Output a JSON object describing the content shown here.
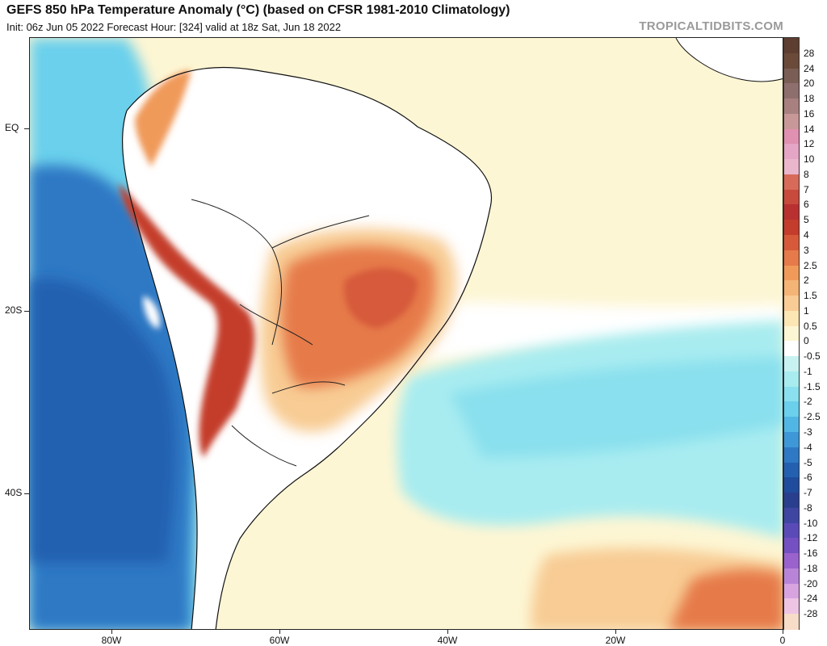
{
  "header": {
    "title": "GEFS 850 hPa Temperature Anomaly (°C) (based on CFSR 1981-2010 Climatology)",
    "subtitle": "Init: 06z Jun 05 2022   Forecast Hour: [324]   valid at 18z Sat, Jun 18 2022",
    "brand": "TROPICALTIDBITS.COM"
  },
  "axes": {
    "lat_labels": [
      "EQ",
      "20S",
      "40S"
    ],
    "lon_labels": [
      "80W",
      "60W",
      "40W",
      "20W",
      "0"
    ]
  },
  "legend": {
    "labels": [
      "28",
      "24",
      "20",
      "18",
      "16",
      "14",
      "12",
      "10",
      "8",
      "7",
      "6",
      "5",
      "4",
      "3",
      "2.5",
      "2",
      "1.5",
      "1",
      "0.5",
      "0",
      "-0.5",
      "-1",
      "-1.5",
      "-2",
      "-2.5",
      "-3",
      "-4",
      "-5",
      "-6",
      "-7",
      "-8",
      "-10",
      "-12",
      "-16",
      "-18",
      "-20",
      "-24",
      "-28"
    ],
    "colors": [
      "#6b4a3a",
      "#7a5e55",
      "#8f6e6e",
      "#a88080",
      "#c89898",
      "#e090b0",
      "#e4a6c4",
      "#eab6cc",
      "#d86a5a",
      "#c74a3c",
      "#b83030",
      "#c43c2c",
      "#d65a3a",
      "#e67a4a",
      "#f09a5a",
      "#f4b476",
      "#f8cc94",
      "#fbe6b4",
      "#fdf6d4",
      "#ffffff",
      "#c8f2f2",
      "#a8ecf0",
      "#8ae0ee",
      "#6ad0ec",
      "#52b6e4",
      "#3e98d8",
      "#2e78c4",
      "#2360b0",
      "#1f4c9c",
      "#2a3e8e",
      "#3e46a2",
      "#5a4ab8",
      "#7450c2",
      "#9a62cc",
      "#b884d8",
      "#d8a4e0",
      "#eec4e4",
      "#f7dcc8"
    ]
  },
  "map_colors": {
    "ocean_tropical": "#fdf6d4",
    "ocean_cool": "#a8ecf0",
    "pacific_cold": "#2e78c4",
    "andes_warm": "#c43c2c",
    "brazil_warm": "#e67a4a",
    "land_neutral": "#ffffff"
  }
}
